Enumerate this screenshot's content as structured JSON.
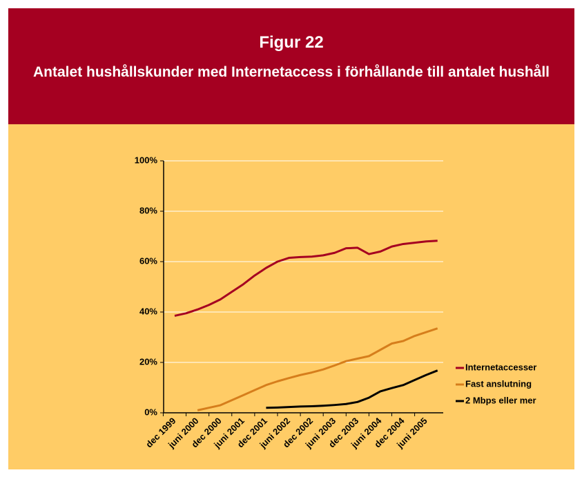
{
  "chart_data": {
    "type": "line",
    "title": "Figur 22",
    "subtitle": "Antalet hushållskunder med Internetaccess i förhållande till antalet hushåll",
    "categories": [
      "dec 1999",
      null,
      "juni 2000",
      null,
      "dec 2000",
      null,
      "juni 2001",
      null,
      "dec 2001",
      null,
      "juni 2002",
      null,
      "dec 2002",
      null,
      "juni 2003",
      null,
      "dec 2003",
      null,
      "juni 2004",
      null,
      "dec 2004",
      null,
      "juni 2005",
      null
    ],
    "series": [
      {
        "name": "Internetaccesser",
        "color": "#a50021",
        "values": [
          38.5,
          39.5,
          41,
          42.8,
          45,
          48,
          51,
          54.5,
          57.5,
          60,
          61.5,
          61.8,
          62,
          62.5,
          63.5,
          65.3,
          65.5,
          63,
          64,
          66,
          67,
          67.5,
          68,
          68.3
        ]
      },
      {
        "name": "Fast anslutning",
        "color": "#d67e1c",
        "values": [
          null,
          null,
          1,
          2,
          3,
          5,
          7,
          9,
          11,
          12.5,
          13.8,
          15,
          16,
          17.2,
          18.8,
          20.5,
          21.5,
          22.5,
          25,
          27.5,
          28.5,
          30.5,
          32,
          33.5
        ]
      },
      {
        "name": "2 Mbps eller mer",
        "color": "#000000",
        "values": [
          null,
          null,
          null,
          null,
          null,
          null,
          null,
          null,
          2,
          2.1,
          2.3,
          2.5,
          2.6,
          2.8,
          3.1,
          3.5,
          4.3,
          6,
          8.5,
          9.8,
          11,
          13,
          15,
          16.8
        ]
      }
    ],
    "ylim": [
      0,
      100
    ],
    "yticks": [
      {
        "value": 0,
        "label": "0%"
      },
      {
        "value": 20,
        "label": "20%"
      },
      {
        "value": 40,
        "label": "40%"
      },
      {
        "value": 60,
        "label": "60%"
      },
      {
        "value": 80,
        "label": "80%"
      },
      {
        "value": 100,
        "label": "100%"
      }
    ],
    "grid": true,
    "legend": "right"
  }
}
